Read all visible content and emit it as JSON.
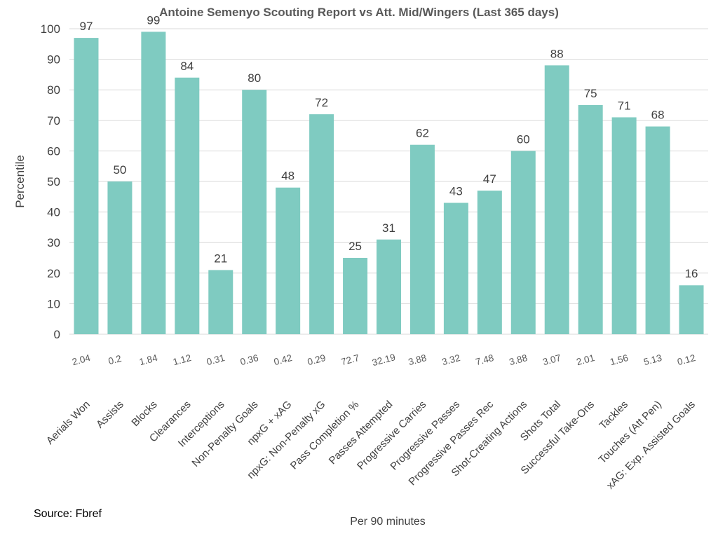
{
  "chart_data": {
    "type": "bar",
    "title": "Antoine Semenyo Scouting Report vs Att. Mid/Wingers (Last 365 days)",
    "ylabel": "Percentile",
    "xlabel": "Per 90 minutes",
    "ylim": [
      0,
      100
    ],
    "yticks": [
      0,
      10,
      20,
      30,
      40,
      50,
      60,
      70,
      80,
      90,
      100
    ],
    "grid": true,
    "bar_color": "#7fcbc1",
    "categories": [
      "Aerials Won",
      "Assists",
      "Blocks",
      "Clearances",
      "Interceptions",
      "Non-Penalty Goals",
      "npxG + xAG",
      "npxG: Non-Penalty xG",
      "Pass Completion %",
      "Passes Attempted",
      "Progressive Carries",
      "Progressive Passes",
      "Progressive Passes Rec",
      "Shot-Creating Actions",
      "Shots Total",
      "Successful Take-Ons",
      "Tackles",
      "Touches (Att Pen)",
      "xAG: Exp. Assisted Goals"
    ],
    "values": [
      97,
      50,
      99,
      84,
      21,
      80,
      48,
      72,
      25,
      31,
      62,
      43,
      47,
      60,
      88,
      75,
      71,
      68,
      16
    ],
    "per90": [
      "2.04",
      "0.2",
      "1.84",
      "1.12",
      "0.31",
      "0.36",
      "0.42",
      "0.29",
      "72.7",
      "32.19",
      "3.88",
      "3.32",
      "7.48",
      "3.88",
      "3.07",
      "2.01",
      "1.56",
      "5.13",
      "0.12"
    ]
  },
  "footer": {
    "source": "Source: Fbref"
  }
}
